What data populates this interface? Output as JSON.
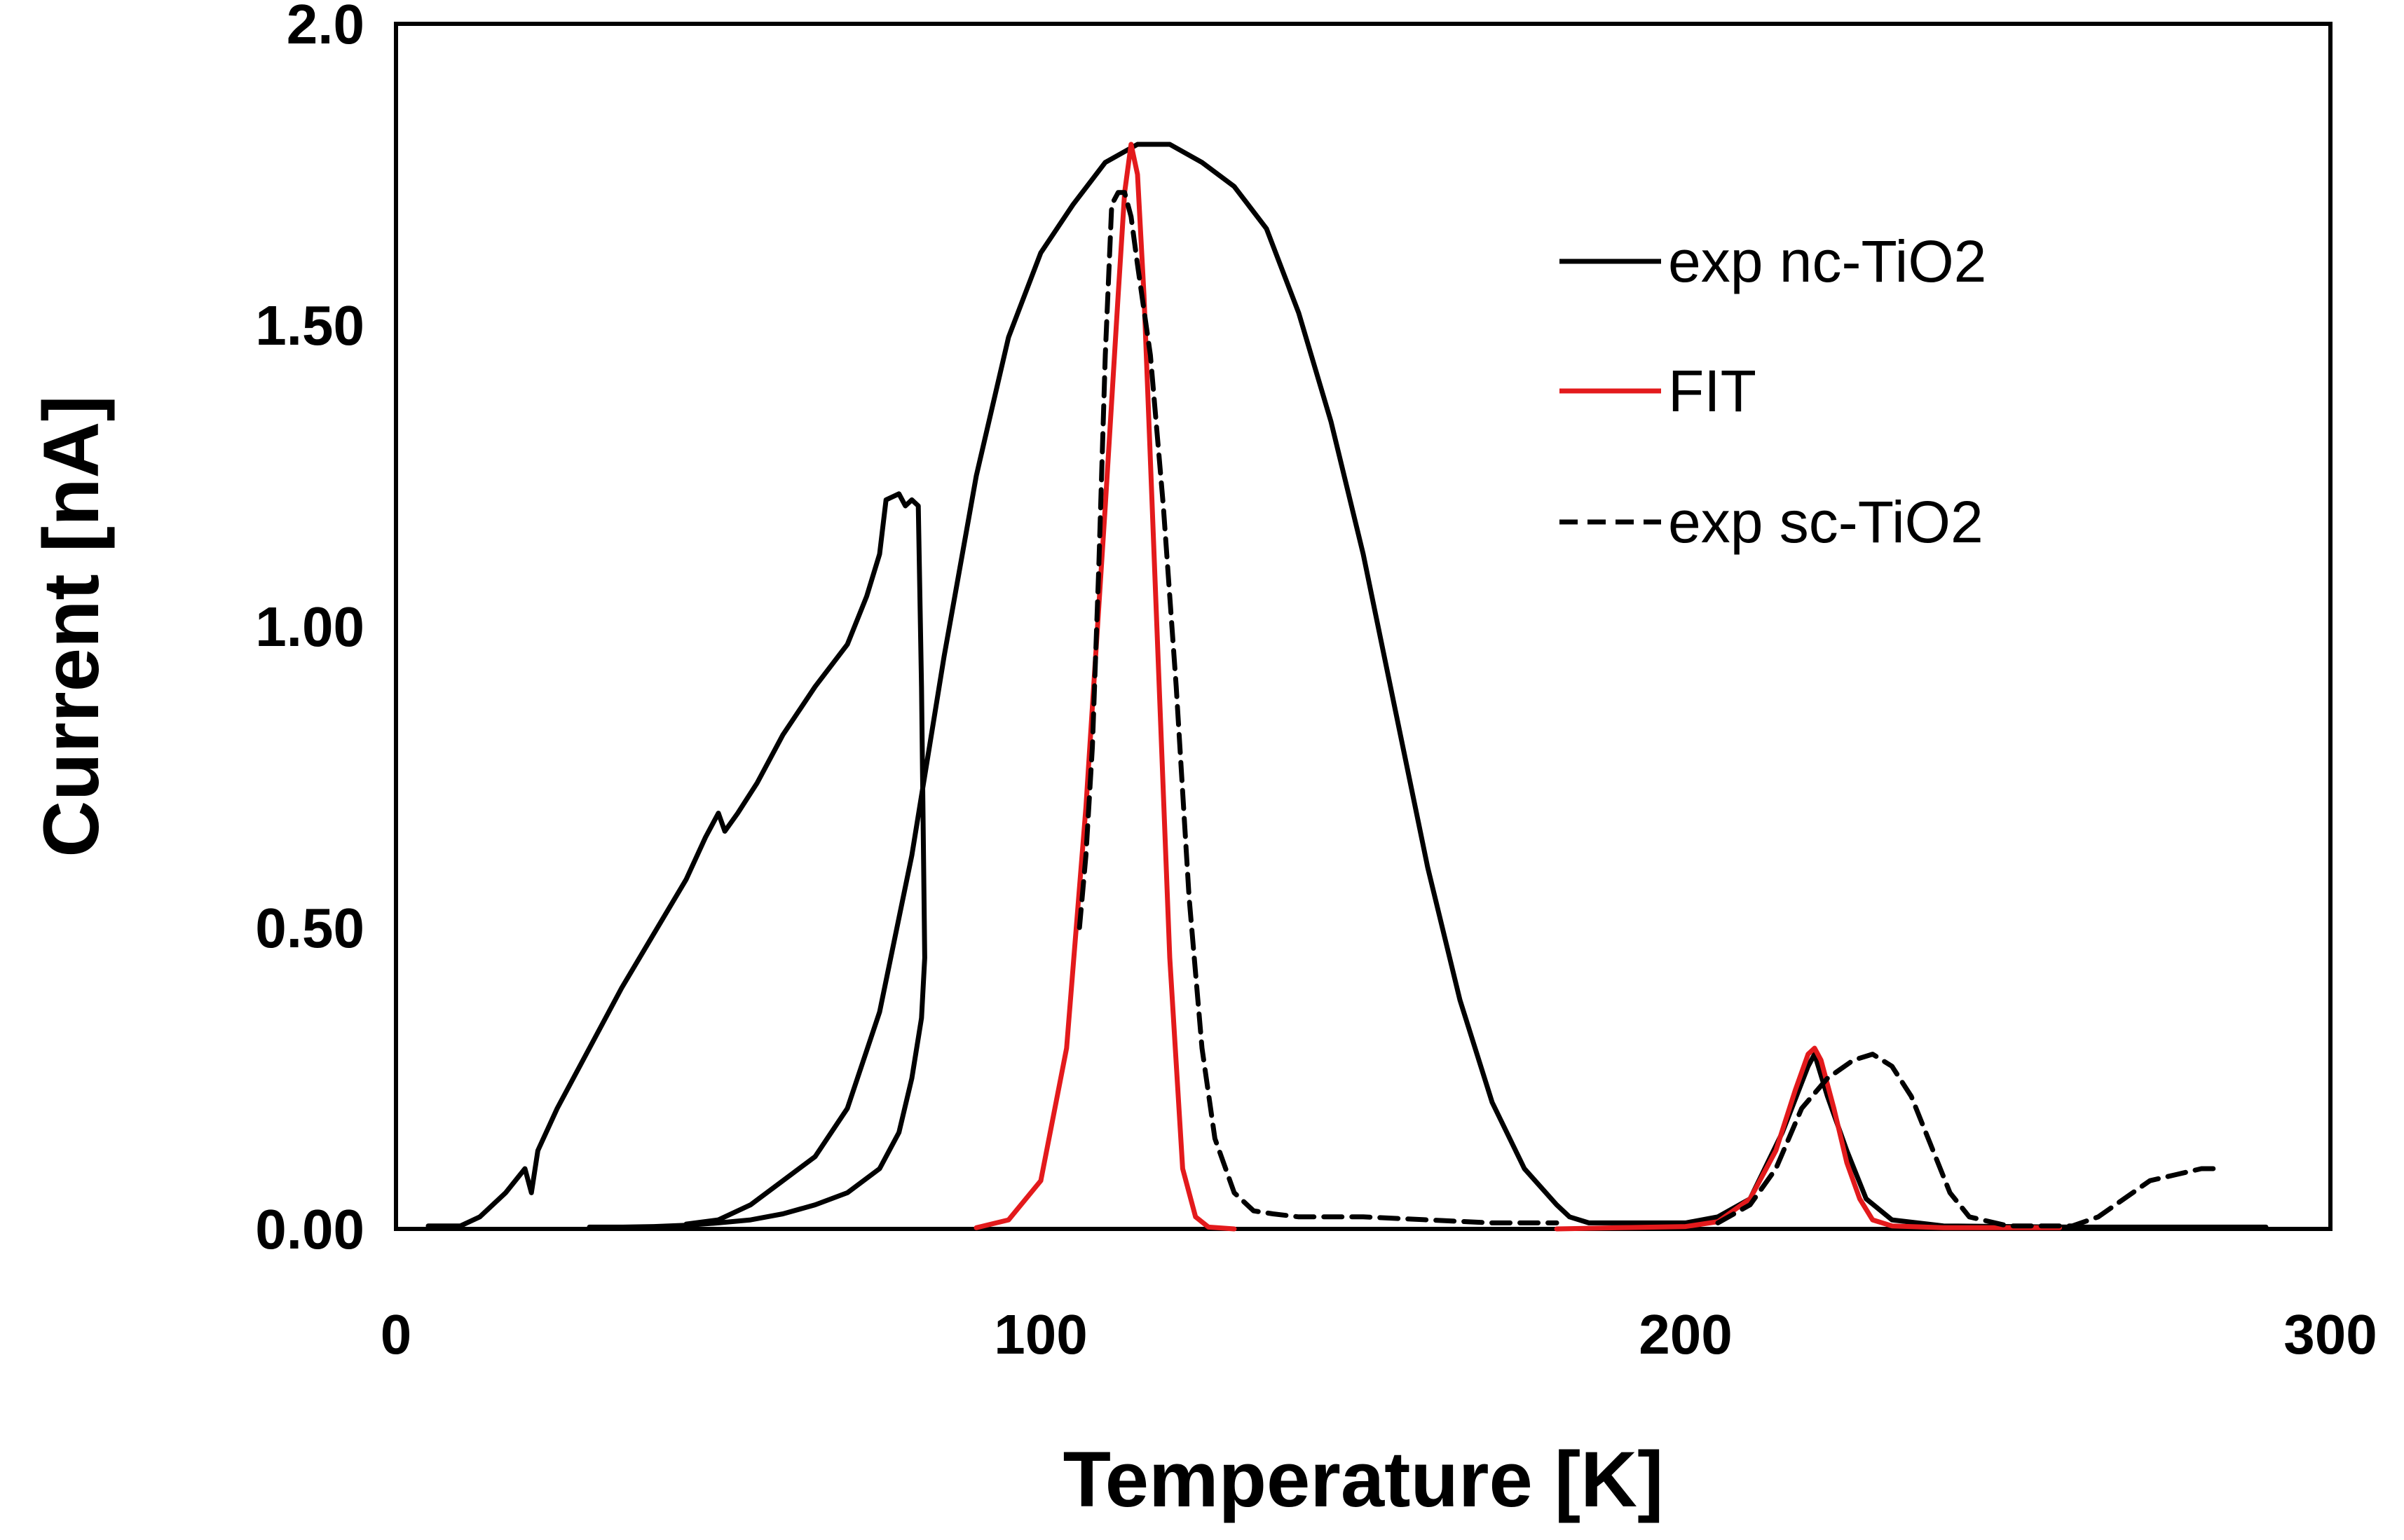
{
  "chart_data": {
    "type": "line",
    "title": "",
    "xlabel": "Temperature [K]",
    "ylabel": "Current [nA]",
    "xlim": [
      0,
      300
    ],
    "ylim": [
      0,
      2.0
    ],
    "x_ticks": [
      0,
      100,
      200,
      300
    ],
    "x_tick_labels": [
      "0",
      "100",
      "200",
      "300"
    ],
    "y_ticks": [
      0,
      0.5,
      1.0,
      1.5,
      2.0
    ],
    "y_tick_labels": [
      "0.00",
      "0.50",
      "1.00",
      "1.50",
      "2.0"
    ],
    "grid": false,
    "legend_position": "top-right",
    "series": [
      {
        "name": "exp nc-TiO2",
        "color": "#000000",
        "style": "solid",
        "segments": [
          [
            [
              5,
              0.005
            ],
            [
              10,
              0.005
            ],
            [
              13,
              0.02
            ],
            [
              17,
              0.06
            ],
            [
              20,
              0.1
            ],
            [
              21,
              0.06
            ],
            [
              22,
              0.13
            ],
            [
              25,
              0.2
            ],
            [
              30,
              0.3
            ],
            [
              35,
              0.4
            ],
            [
              40,
              0.49
            ],
            [
              45,
              0.58
            ],
            [
              48,
              0.65
            ],
            [
              50,
              0.69
            ],
            [
              51,
              0.66
            ],
            [
              53,
              0.69
            ],
            [
              56,
              0.74
            ],
            [
              60,
              0.82
            ],
            [
              65,
              0.9
            ],
            [
              70,
              0.97
            ],
            [
              73,
              1.05
            ],
            [
              75,
              1.12
            ],
            [
              76,
              1.21
            ],
            [
              78,
              1.22
            ],
            [
              79,
              1.2
            ],
            [
              80,
              1.21
            ],
            [
              81,
              1.2
            ],
            [
              81.5,
              0.9
            ],
            [
              82,
              0.45
            ],
            [
              81.5,
              0.35
            ],
            [
              80,
              0.25
            ],
            [
              78,
              0.16
            ],
            [
              75,
              0.1
            ],
            [
              70,
              0.06
            ],
            [
              65,
              0.04
            ],
            [
              60,
              0.025
            ],
            [
              55,
              0.015
            ],
            [
              50,
              0.01
            ],
            [
              45,
              0.006
            ],
            [
              40,
              0.004
            ],
            [
              35,
              0.003
            ],
            [
              30,
              0.003
            ]
          ],
          [
            [
              45,
              0.008
            ],
            [
              50,
              0.015
            ],
            [
              55,
              0.04
            ],
            [
              60,
              0.08
            ],
            [
              65,
              0.12
            ],
            [
              70,
              0.2
            ],
            [
              75,
              0.36
            ],
            [
              80,
              0.62
            ],
            [
              85,
              0.95
            ],
            [
              90,
              1.25
            ],
            [
              95,
              1.48
            ],
            [
              100,
              1.62
            ],
            [
              105,
              1.7
            ],
            [
              110,
              1.77
            ],
            [
              115,
              1.8
            ],
            [
              120,
              1.8
            ],
            [
              125,
              1.77
            ],
            [
              130,
              1.73
            ],
            [
              135,
              1.66
            ],
            [
              140,
              1.52
            ],
            [
              145,
              1.34
            ],
            [
              150,
              1.12
            ],
            [
              155,
              0.86
            ],
            [
              160,
              0.6
            ],
            [
              165,
              0.38
            ],
            [
              170,
              0.21
            ],
            [
              175,
              0.1
            ],
            [
              180,
              0.04
            ],
            [
              182,
              0.02
            ],
            [
              185,
              0.01
            ],
            [
              190,
              0.01
            ],
            [
              200,
              0.01
            ],
            [
              205,
              0.02
            ],
            [
              210,
              0.05
            ],
            [
              215,
              0.16
            ],
            [
              219,
              0.27
            ],
            [
              220,
              0.29
            ],
            [
              222,
              0.22
            ],
            [
              225,
              0.13
            ],
            [
              228,
              0.05
            ],
            [
              232,
              0.015
            ],
            [
              240,
              0.005
            ],
            [
              260,
              0.003
            ],
            [
              290,
              0.003
            ]
          ]
        ]
      },
      {
        "name": "FIT",
        "color": "#e31a1c",
        "style": "solid",
        "segments": [
          [
            [
              90,
              0.002
            ],
            [
              95,
              0.015
            ],
            [
              100,
              0.08
            ],
            [
              104,
              0.3
            ],
            [
              107,
              0.7
            ],
            [
              110,
              1.2
            ],
            [
              112,
              1.55
            ],
            [
              113,
              1.72
            ],
            [
              114,
              1.8
            ],
            [
              115,
              1.75
            ],
            [
              116,
              1.55
            ],
            [
              118,
              1.0
            ],
            [
              120,
              0.45
            ],
            [
              122,
              0.1
            ],
            [
              124,
              0.02
            ],
            [
              126,
              0.003
            ],
            [
              130,
              0
            ]
          ],
          [
            [
              180,
              0
            ],
            [
              190,
              0.002
            ],
            [
              200,
              0.004
            ],
            [
              205,
              0.012
            ],
            [
              210,
              0.05
            ],
            [
              214,
              0.13
            ],
            [
              217,
              0.23
            ],
            [
              219,
              0.29
            ],
            [
              220,
              0.3
            ],
            [
              221,
              0.28
            ],
            [
              223,
              0.2
            ],
            [
              225,
              0.11
            ],
            [
              227,
              0.05
            ],
            [
              229,
              0.015
            ],
            [
              232,
              0.005
            ],
            [
              240,
              0.002
            ],
            [
              258,
              0.002
            ]
          ]
        ]
      },
      {
        "name": "exp sc-TiO2",
        "color": "#000000",
        "style": "dashed",
        "segments": [
          [
            [
              106,
              0.5
            ],
            [
              107,
              0.62
            ],
            [
              108,
              0.8
            ],
            [
              109,
              1.1
            ],
            [
              110,
              1.45
            ],
            [
              111,
              1.7
            ],
            [
              112,
              1.72
            ],
            [
              113,
              1.72
            ],
            [
              114,
              1.68
            ],
            [
              115,
              1.6
            ],
            [
              117,
              1.45
            ],
            [
              119,
              1.2
            ],
            [
              121,
              0.9
            ],
            [
              123,
              0.55
            ],
            [
              125,
              0.3
            ],
            [
              127,
              0.15
            ],
            [
              130,
              0.06
            ],
            [
              133,
              0.03
            ],
            [
              136,
              0.025
            ],
            [
              140,
              0.02
            ],
            [
              150,
              0.02
            ],
            [
              160,
              0.015
            ],
            [
              170,
              0.01
            ],
            [
              180,
              0.01
            ]
          ],
          [
            [
              205,
              0.01
            ],
            [
              210,
              0.04
            ],
            [
              214,
              0.1
            ],
            [
              218,
              0.2
            ],
            [
              222,
              0.25
            ],
            [
              226,
              0.28
            ],
            [
              229,
              0.29
            ],
            [
              232,
              0.27
            ],
            [
              235,
              0.22
            ],
            [
              238,
              0.14
            ],
            [
              241,
              0.06
            ],
            [
              244,
              0.02
            ],
            [
              250,
              0.005
            ],
            [
              260,
              0.005
            ],
            [
              264,
              0.02
            ],
            [
              268,
              0.05
            ],
            [
              272,
              0.08
            ],
            [
              276,
              0.09
            ],
            [
              280,
              0.1
            ],
            [
              283,
              0.1
            ]
          ]
        ]
      }
    ]
  }
}
